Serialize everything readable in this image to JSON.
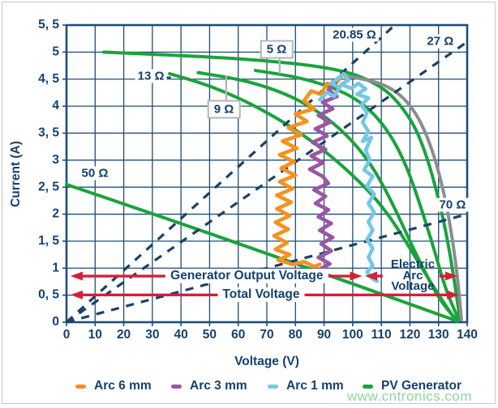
{
  "watermark": "www.cntronics.com",
  "legend": {
    "items": [
      {
        "label": "Arc 6 mm",
        "color": "#f6921e"
      },
      {
        "label": "Arc 3 mm",
        "color": "#9a56a5"
      },
      {
        "label": "Arc 1 mm",
        "color": "#74c7e6"
      },
      {
        "label": "PV Generator",
        "color": "#1aa33c"
      }
    ]
  },
  "chart_data": {
    "type": "line",
    "xlabel": "Voltage (V)",
    "ylabel": "Current (A)",
    "xlim": [
      0,
      140
    ],
    "ylim": [
      0,
      5.5
    ],
    "grid": true,
    "x_ticks": [
      "0",
      "10",
      "20",
      "30",
      "40",
      "50",
      "60",
      "70",
      "80",
      "90",
      "100",
      "110",
      "120",
      "130",
      "140"
    ],
    "y_ticks_bottom_to_top": [
      "0",
      "0, 5",
      "1",
      "1, 5",
      "2",
      "2, 5",
      "3",
      "3, 5",
      "4",
      "4, 5",
      "5",
      "5, 5"
    ],
    "colors": {
      "grid": "#1e4e79",
      "navy_text": "#14416f",
      "pv_green": "#1aa33c",
      "gray_curve": "#8b8e90",
      "dashed_line": "#1c4166",
      "red_arrow": "#d32038",
      "arc_6mm": "#f6921e",
      "arc_3mm": "#9a56a5",
      "arc_1mm": "#74c7e6",
      "label_box_border": "#b5b5b5",
      "watermark": "#8ed69b"
    },
    "pv_curves": [
      {
        "name": "pv-curve-1",
        "points": [
          [
            13,
            5.0
          ],
          [
            35,
            4.95
          ],
          [
            60,
            4.88
          ],
          [
            80,
            4.79
          ],
          [
            92,
            4.7
          ],
          [
            100,
            4.6
          ],
          [
            106,
            4.47
          ],
          [
            112,
            4.28
          ],
          [
            117,
            4.0
          ],
          [
            122,
            3.6
          ],
          [
            126,
            3.05
          ],
          [
            129.5,
            2.4
          ],
          [
            132.5,
            1.7
          ],
          [
            135,
            0.95
          ],
          [
            137.5,
            0.05
          ]
        ]
      },
      {
        "name": "pv-curve-5ohm",
        "points": [
          [
            66,
            4.66
          ],
          [
            75,
            4.59
          ],
          [
            84,
            4.49
          ],
          [
            92,
            4.36
          ],
          [
            99,
            4.2
          ],
          [
            105,
            3.98
          ],
          [
            110,
            3.7
          ],
          [
            114.5,
            3.35
          ],
          [
            118.5,
            2.92
          ],
          [
            122,
            2.42
          ],
          [
            125.5,
            1.85
          ],
          [
            129,
            1.25
          ],
          [
            132.5,
            0.6
          ],
          [
            137,
            0.05
          ]
        ]
      },
      {
        "name": "pv-curve-9ohm",
        "points": [
          [
            46,
            4.62
          ],
          [
            56,
            4.54
          ],
          [
            66,
            4.42
          ],
          [
            76,
            4.24
          ],
          [
            85,
            4.0
          ],
          [
            93,
            3.7
          ],
          [
            100,
            3.35
          ],
          [
            106,
            2.95
          ],
          [
            111,
            2.5
          ],
          [
            115.5,
            2.02
          ],
          [
            120,
            1.5
          ],
          [
            125,
            0.95
          ],
          [
            130.5,
            0.4
          ],
          [
            136.5,
            0.03
          ]
        ]
      },
      {
        "name": "pv-curve-13ohm",
        "points": [
          [
            36,
            4.6
          ],
          [
            46,
            4.45
          ],
          [
            56,
            4.25
          ],
          [
            66,
            4.0
          ],
          [
            76,
            3.7
          ],
          [
            85,
            3.38
          ],
          [
            93,
            3.05
          ],
          [
            100,
            2.72
          ],
          [
            107,
            2.35
          ],
          [
            113,
            1.95
          ],
          [
            118.5,
            1.5
          ],
          [
            124,
            1.02
          ],
          [
            129.5,
            0.55
          ],
          [
            136,
            0.03
          ]
        ]
      },
      {
        "name": "pv-curve-low",
        "points": [
          [
            0,
            2.55
          ],
          [
            35,
            1.92
          ],
          [
            70,
            1.27
          ],
          [
            105,
            0.62
          ],
          [
            136.5,
            0.02
          ]
        ]
      }
    ],
    "gray_curve": {
      "name": "generator-curve-gray",
      "points": [
        [
          96.5,
          4.57
        ],
        [
          104,
          4.5
        ],
        [
          111,
          4.4
        ],
        [
          117,
          4.2
        ],
        [
          122,
          3.88
        ],
        [
          126,
          3.45
        ],
        [
          129.5,
          2.9
        ],
        [
          132.5,
          2.25
        ],
        [
          135,
          1.5
        ],
        [
          136.8,
          0.75
        ],
        [
          138,
          0.05
        ]
      ]
    },
    "load_lines": [
      {
        "r": 20.85,
        "from": [
          0,
          0
        ],
        "to": [
          114.7,
          5.5
        ]
      },
      {
        "r": 27,
        "from": [
          0,
          0
        ],
        "to": [
          140,
          5.19
        ]
      },
      {
        "r": 70,
        "from": [
          0,
          0
        ],
        "to": [
          140,
          2.0
        ]
      }
    ],
    "resistance_labels": [
      {
        "text": "5 Ω",
        "v": 73.4,
        "i": 5.05,
        "boxed": true,
        "leader": [
          [
            74.5,
            4.9
          ],
          [
            74.5,
            4.6
          ]
        ]
      },
      {
        "text": "9 Ω",
        "v": 55.0,
        "i": 3.94,
        "boxed": true,
        "leader": [
          [
            55.8,
            4.1
          ],
          [
            55.8,
            4.56
          ]
        ]
      },
      {
        "text": "13 Ω",
        "v": 29.5,
        "i": 4.56,
        "boxed": false,
        "leader": [
          [
            34.2,
            4.53
          ],
          [
            36.5,
            4.53
          ]
        ]
      },
      {
        "text": "20.85 Ω",
        "v": 100.6,
        "i": 5.32,
        "boxed": false,
        "leader": null
      },
      {
        "text": "27 Ω",
        "v": 130.6,
        "i": 5.2,
        "boxed": false,
        "leader": null
      },
      {
        "text": "50 Ω",
        "v": 9.9,
        "i": 2.76,
        "boxed": false,
        "leader": null
      },
      {
        "text": "70 Ω",
        "v": 134.9,
        "i": 2.17,
        "boxed": false,
        "leader": null
      }
    ],
    "arc_traces": [
      {
        "name": "Arc 6 mm",
        "color": "#f6921e",
        "points": [
          [
            96.8,
            4.6
          ],
          [
            93.5,
            4.38
          ],
          [
            91,
            4.42
          ],
          [
            89,
            4.22
          ],
          [
            85.5,
            4.28
          ],
          [
            83,
            4.1
          ],
          [
            86.5,
            3.95
          ],
          [
            80,
            3.85
          ],
          [
            84,
            3.72
          ],
          [
            77.5,
            3.6
          ],
          [
            82,
            3.47
          ],
          [
            75.5,
            3.35
          ],
          [
            80.5,
            3.22
          ],
          [
            74.5,
            3.1
          ],
          [
            79.5,
            2.97
          ],
          [
            75,
            2.85
          ],
          [
            80,
            2.72
          ],
          [
            74.5,
            2.6
          ],
          [
            79,
            2.47
          ],
          [
            73.5,
            2.35
          ],
          [
            78.5,
            2.22
          ],
          [
            73.5,
            2.1
          ],
          [
            78,
            1.97
          ],
          [
            73,
            1.85
          ],
          [
            77.5,
            1.72
          ],
          [
            72.5,
            1.6
          ],
          [
            77,
            1.47
          ],
          [
            73,
            1.35
          ],
          [
            78,
            1.25
          ],
          [
            74,
            1.15
          ],
          [
            79,
            1.07
          ],
          [
            83,
            1.12
          ],
          [
            86.5,
            1.03
          ],
          [
            88.5,
            1.07
          ]
        ]
      },
      {
        "name": "Arc 3 mm",
        "color": "#9a56a5",
        "points": [
          [
            94,
            4.42
          ],
          [
            91.5,
            4.3
          ],
          [
            94.5,
            4.18
          ],
          [
            89.5,
            4.07
          ],
          [
            93,
            3.95
          ],
          [
            88,
            3.83
          ],
          [
            92,
            3.7
          ],
          [
            87,
            3.58
          ],
          [
            91,
            3.45
          ],
          [
            86,
            3.33
          ],
          [
            90.5,
            3.2
          ],
          [
            85.5,
            3.08
          ],
          [
            89.5,
            2.95
          ],
          [
            85,
            2.83
          ],
          [
            89.5,
            2.7
          ],
          [
            91.5,
            2.57
          ],
          [
            86.5,
            2.45
          ],
          [
            90.5,
            2.33
          ],
          [
            87,
            2.2
          ],
          [
            91.5,
            2.08
          ],
          [
            88,
            1.95
          ],
          [
            92.5,
            1.83
          ],
          [
            88.5,
            1.7
          ],
          [
            93,
            1.57
          ],
          [
            89,
            1.45
          ],
          [
            92.5,
            1.32
          ],
          [
            88,
            1.2
          ],
          [
            92,
            1.08
          ],
          [
            88.5,
            0.98
          ],
          [
            84,
            0.93
          ],
          [
            80.5,
            0.97
          ],
          [
            78.5,
            0.9
          ]
        ]
      },
      {
        "name": "Arc 1 mm",
        "color": "#74c7e6",
        "points": [
          [
            88.5,
            4.12
          ],
          [
            91,
            4.25
          ],
          [
            93.5,
            4.18
          ],
          [
            95.5,
            4.35
          ],
          [
            92.5,
            4.42
          ],
          [
            96.8,
            4.6
          ],
          [
            98.5,
            4.48
          ],
          [
            96,
            4.4
          ],
          [
            99.5,
            4.33
          ],
          [
            102,
            4.42
          ],
          [
            104.5,
            4.32
          ],
          [
            101.5,
            4.22
          ],
          [
            105.5,
            4.15
          ],
          [
            103,
            4.02
          ],
          [
            105,
            3.88
          ],
          [
            103.5,
            3.7
          ],
          [
            105.5,
            3.53
          ],
          [
            103.5,
            3.35
          ],
          [
            106.5,
            3.42
          ],
          [
            104.5,
            3.18
          ],
          [
            106,
            3.0
          ],
          [
            104,
            2.82
          ],
          [
            107,
            2.7
          ],
          [
            105,
            2.52
          ],
          [
            107.5,
            2.37
          ],
          [
            105.5,
            2.2
          ],
          [
            107.5,
            2.03
          ],
          [
            105.5,
            1.86
          ],
          [
            107,
            1.7
          ],
          [
            105,
            1.53
          ],
          [
            107,
            1.37
          ],
          [
            105.5,
            1.2
          ],
          [
            107,
            1.05
          ],
          [
            105,
            0.93
          ],
          [
            106.5,
            0.82
          ],
          [
            108.5,
            0.76
          ]
        ]
      }
    ],
    "voltage_spans": [
      {
        "label": "Generator Output Voltage",
        "i": 0.854,
        "v1": 1.4,
        "v2": 103.3,
        "label_v": 63
      },
      {
        "label": "Total Voltage",
        "i": 0.505,
        "v1": 1.4,
        "v2": 137.2,
        "label_v": 68
      }
    ],
    "arc_span": {
      "lines": [
        "Electric",
        "Arc",
        "Voltage"
      ],
      "i": 0.854,
      "left_tip_v": 104.3,
      "left_tail_v": 110.5,
      "right_tail_v": 130.3,
      "right_tip_v": 136.6,
      "label_center_v": 121.0
    }
  }
}
